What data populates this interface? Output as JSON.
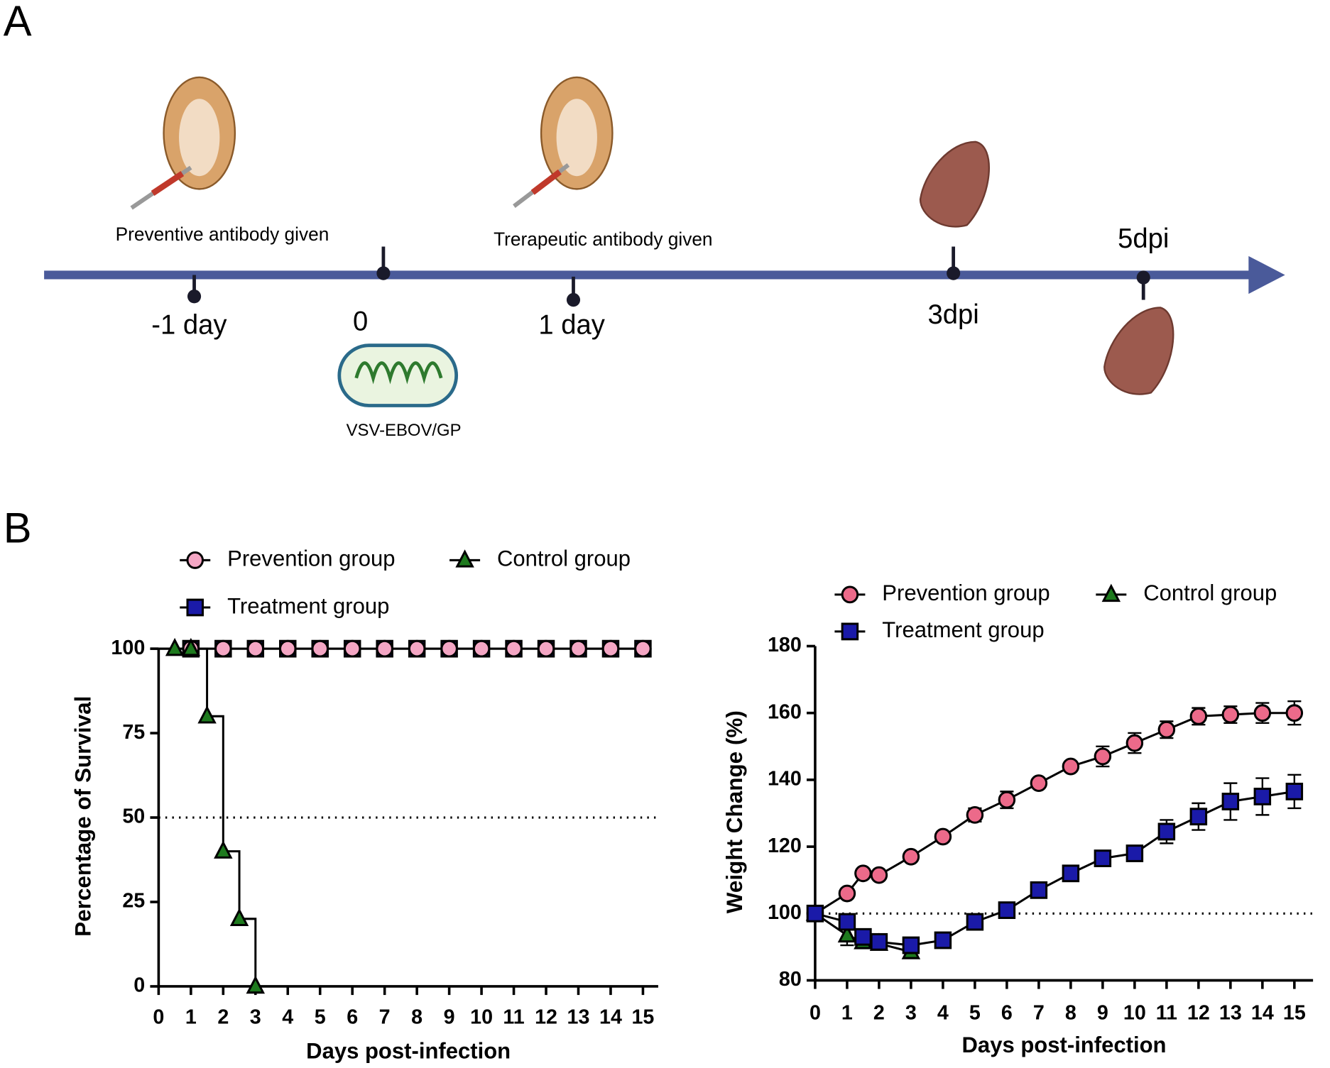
{
  "diagram": {
    "panel_labels": [
      "A",
      "B"
    ],
    "timeline": [
      "-1 day",
      "0",
      "1 day",
      "3dpi",
      "5dpi"
    ],
    "annotations": [
      "Preventive antibody given",
      "Trerapeutic antibody given",
      "VSV-EBOV/GP"
    ]
  },
  "chart_data": [
    {
      "type": "line",
      "step": true,
      "x_label": "Days post-infection",
      "y_label": "Percentage of Survival",
      "xlim": [
        0,
        15
      ],
      "xticks": [
        0,
        1,
        2,
        3,
        4,
        5,
        6,
        7,
        8,
        9,
        10,
        11,
        12,
        13,
        14,
        15
      ],
      "ylim": [
        0,
        100
      ],
      "yticks": [
        0,
        25,
        50,
        75,
        100
      ],
      "reference_line": 50,
      "series": [
        {
          "name": "Treatment group",
          "color": "#1a1aa8",
          "marker": "square",
          "x": [
            1,
            2,
            3,
            4,
            5,
            6,
            7,
            8,
            9,
            10,
            11,
            12,
            13,
            14,
            15
          ],
          "values": [
            100,
            100,
            100,
            100,
            100,
            100,
            100,
            100,
            100,
            100,
            100,
            100,
            100,
            100,
            100
          ]
        },
        {
          "name": "Prevention group",
          "color": "#f4a6c4",
          "marker": "circle",
          "x": [
            1,
            2,
            3,
            4,
            5,
            6,
            7,
            8,
            9,
            10,
            11,
            12,
            13,
            14,
            15
          ],
          "values": [
            100,
            100,
            100,
            100,
            100,
            100,
            100,
            100,
            100,
            100,
            100,
            100,
            100,
            100,
            100
          ]
        },
        {
          "name": "Control group",
          "color": "#1e7a1e",
          "marker": "triangle",
          "x": [
            0.5,
            1,
            1.5,
            2,
            2.5,
            3
          ],
          "values": [
            100,
            100,
            80,
            40,
            20,
            0
          ]
        }
      ]
    },
    {
      "type": "line",
      "step": false,
      "x_label": "Days post-infection",
      "y_label": "Weight Change (%)",
      "xlim": [
        0,
        15
      ],
      "xticks": [
        0,
        1,
        2,
        3,
        4,
        5,
        6,
        7,
        8,
        9,
        10,
        11,
        12,
        13,
        14,
        15
      ],
      "ylim": [
        80,
        180
      ],
      "yticks": [
        80,
        100,
        120,
        140,
        160,
        180
      ],
      "reference_line": 100,
      "series": [
        {
          "name": "Prevention group",
          "color": "#ec6a8a",
          "marker": "circle",
          "x": [
            0,
            1,
            1.5,
            2,
            3,
            4,
            5,
            6,
            7,
            8,
            9,
            10,
            11,
            12,
            13,
            14,
            15
          ],
          "values": [
            100,
            106,
            112,
            111.5,
            117,
            123,
            129.5,
            134,
            139,
            144,
            147,
            151,
            155,
            159,
            159.5,
            160,
            160
          ],
          "errors": [
            0,
            1,
            1,
            1,
            1,
            1,
            2,
            2.5,
            1,
            1,
            3,
            3,
            2.5,
            2.5,
            2.5,
            3,
            3.5
          ]
        },
        {
          "name": "Control group",
          "color": "#1e7a1e",
          "marker": "triangle",
          "x": [
            0,
            1,
            1.5,
            2,
            3
          ],
          "values": [
            100,
            93.5,
            91.5,
            91,
            88.5
          ],
          "errors": [
            0,
            3,
            1,
            1,
            1
          ]
        },
        {
          "name": "Treatment group",
          "color": "#1a1aa8",
          "marker": "square",
          "x": [
            0,
            1,
            1.5,
            2,
            3,
            4,
            5,
            6,
            7,
            8,
            9,
            10,
            11,
            12,
            13,
            14,
            15
          ],
          "values": [
            100,
            97.5,
            93,
            91.5,
            90.5,
            92,
            97.5,
            101,
            107,
            112,
            116.5,
            118,
            124.5,
            129,
            133.5,
            135,
            136.5
          ],
          "errors": [
            0,
            1,
            1,
            1,
            1,
            1,
            1,
            1,
            1,
            1,
            2,
            1,
            3.5,
            4,
            5.5,
            5.5,
            5
          ]
        }
      ]
    }
  ]
}
